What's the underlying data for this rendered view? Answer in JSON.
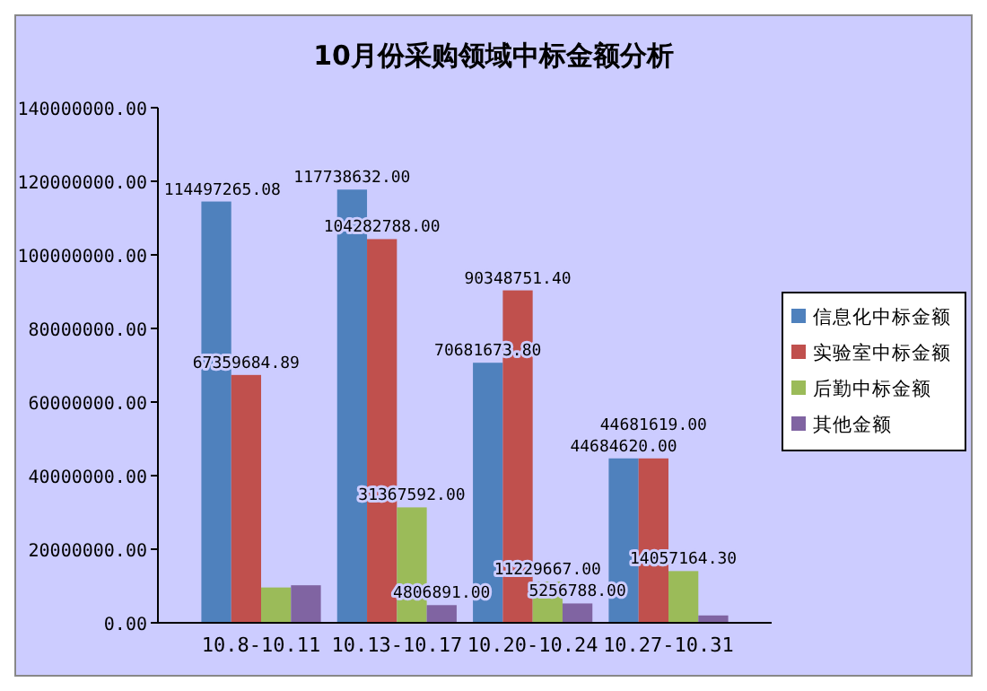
{
  "chart_data": {
    "type": "bar",
    "title": "10月份采购领域中标金额分析",
    "categories": [
      "10.8-10.11",
      "10.13-10.17",
      "10.20-10.24",
      "10.27-10.31"
    ],
    "series": [
      {
        "name": "信息化中标金额",
        "color": "#4f81bd",
        "values": [
          114497265.08,
          117738632.0,
          70681673.8,
          44684620.0
        ],
        "value_labels": [
          "114497265.08",
          "117738632.00",
          "70681673.80",
          "44684620.00"
        ]
      },
      {
        "name": "实验室中标金额",
        "color": "#c0504d",
        "values": [
          67359684.89,
          104282788.0,
          90348751.4,
          44681619.0
        ],
        "value_labels": [
          "67359684.89",
          "104282788.00",
          "90348751.40",
          "44681619.00"
        ]
      },
      {
        "name": "后勤中标金额",
        "color": "#9bbb59",
        "values": [
          9600000,
          31367592.0,
          11229667.0,
          14057164.3
        ],
        "value_labels": [
          null,
          "31367592.00",
          "11229667.00",
          "14057164.30"
        ]
      },
      {
        "name": "其他金额",
        "color": "#8064a2",
        "values": [
          10200000,
          4806891.0,
          5256788.0,
          2000000
        ],
        "value_labels": [
          null,
          "4806891.00",
          "5256788.00",
          null
        ]
      }
    ],
    "ylim": [
      0,
      140000000
    ],
    "yticks": [
      {
        "value": 0,
        "label": "0.00"
      },
      {
        "value": 20000000,
        "label": "20000000.00"
      },
      {
        "value": 40000000,
        "label": "40000000.00"
      },
      {
        "value": 60000000,
        "label": "60000000.00"
      },
      {
        "value": 80000000,
        "label": "80000000.00"
      },
      {
        "value": 100000000,
        "label": "100000000.00"
      },
      {
        "value": 120000000,
        "label": "120000000.00"
      },
      {
        "value": 140000000,
        "label": "140000000.00"
      }
    ],
    "legend": "right",
    "grid": false
  }
}
